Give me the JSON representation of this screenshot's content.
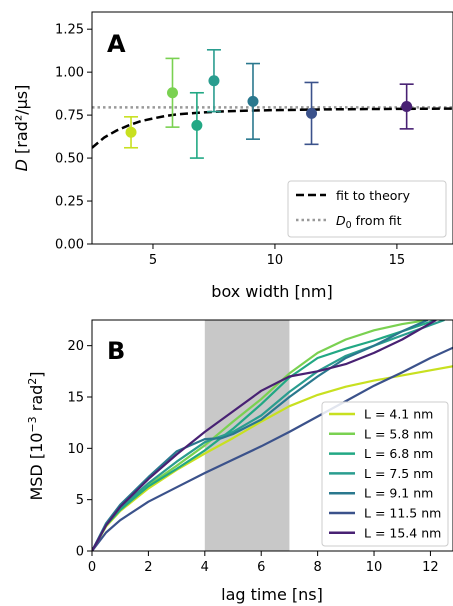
{
  "chart_data": [
    {
      "panel_label": "A",
      "type": "scatter",
      "xlabel": "box width [nm]",
      "ylabel_prefix": "D",
      "ylabel_rest": " [rad²/µs]",
      "xlim": [
        2.5,
        17.3
      ],
      "ylim": [
        0.0,
        1.35
      ],
      "xticks": [
        5,
        10,
        15
      ],
      "yticks": [
        0.0,
        0.25,
        0.5,
        0.75,
        1.0,
        1.25
      ],
      "xtick_labels": [
        "5",
        "10",
        "15"
      ],
      "ytick_labels": [
        "0.00",
        "0.25",
        "0.50",
        "0.75",
        "1.00",
        "1.25"
      ],
      "points": [
        {
          "x": 4.1,
          "y": 0.65,
          "err": 0.09,
          "color": "#c8e020"
        },
        {
          "x": 5.8,
          "y": 0.88,
          "err": 0.2,
          "color": "#7ad151"
        },
        {
          "x": 6.8,
          "y": 0.69,
          "err": 0.19,
          "color": "#22a884"
        },
        {
          "x": 7.5,
          "y": 0.95,
          "err": 0.18,
          "color": "#2a9d8f"
        },
        {
          "x": 9.1,
          "y": 0.83,
          "err": 0.22,
          "color": "#2a788e"
        },
        {
          "x": 11.5,
          "y": 0.76,
          "err": 0.18,
          "color": "#3b528b"
        },
        {
          "x": 15.4,
          "y": 0.8,
          "err": 0.13,
          "color": "#482173"
        }
      ],
      "fit_curve": {
        "x": [
          2.5,
          3.0,
          3.5,
          4.0,
          4.5,
          5.0,
          5.5,
          6.0,
          7.0,
          8.0,
          9.0,
          10.0,
          11.0,
          12.0,
          13.5,
          15.0,
          17.3
        ],
        "y": [
          0.56,
          0.62,
          0.66,
          0.69,
          0.715,
          0.73,
          0.745,
          0.755,
          0.765,
          0.772,
          0.776,
          0.779,
          0.781,
          0.783,
          0.785,
          0.786,
          0.788
        ]
      },
      "D0": 0.795,
      "legend": {
        "position": "lower-right",
        "entries": [
          {
            "label": "fit to theory",
            "style": "dashed",
            "color": "#000000"
          },
          {
            "label_prefix": "D",
            "label_sub": "0",
            "label_rest": " from fit",
            "style": "dotted",
            "color": "#999999"
          }
        ]
      }
    },
    {
      "panel_label": "B",
      "type": "line",
      "xlabel": "lag time [ns]",
      "ylabel_parts": [
        "MSD [10",
        "−3",
        " rad",
        "2",
        "]"
      ],
      "xlim": [
        0,
        12.8
      ],
      "ylim": [
        0,
        22.5
      ],
      "xticks": [
        0,
        2,
        4,
        6,
        8,
        10,
        12
      ],
      "yticks": [
        0,
        5,
        10,
        15,
        20
      ],
      "xtick_labels": [
        "0",
        "2",
        "4",
        "6",
        "8",
        "10",
        "12"
      ],
      "ytick_labels": [
        "0",
        "5",
        "10",
        "15",
        "20"
      ],
      "shaded_region": [
        4.0,
        7.0
      ],
      "shade_color": "#c8c8c8",
      "series": [
        {
          "name": "L = 4.1 nm",
          "color": "#c8e020",
          "x": [
            0,
            0.5,
            1,
            2,
            3,
            4,
            5,
            6,
            7,
            8,
            9,
            10,
            11,
            12,
            12.8
          ],
          "y": [
            0,
            2.4,
            3.9,
            6.1,
            7.9,
            9.5,
            11.0,
            12.6,
            14.1,
            15.2,
            16.0,
            16.6,
            17.1,
            17.6,
            18.0
          ]
        },
        {
          "name": "L = 5.8 nm",
          "color": "#7ad151",
          "x": [
            0,
            0.5,
            1,
            2,
            3,
            4,
            5,
            6,
            7,
            8,
            9,
            10,
            11,
            11.9
          ],
          "y": [
            0,
            2.5,
            4.0,
            6.4,
            8.3,
            10.3,
            12.6,
            14.8,
            17.3,
            19.3,
            20.6,
            21.5,
            22.1,
            22.5
          ]
        },
        {
          "name": "L = 6.8 nm",
          "color": "#22a884",
          "x": [
            0,
            0.5,
            1,
            2,
            3,
            4,
            5,
            6,
            7,
            8,
            9,
            10,
            11,
            12.2
          ],
          "y": [
            0,
            2.5,
            4.0,
            6.3,
            8.0,
            9.8,
            11.9,
            14.3,
            16.9,
            18.8,
            19.7,
            20.5,
            21.4,
            22.5
          ]
        },
        {
          "name": "L = 7.5 nm",
          "color": "#2a9d8f",
          "x": [
            0,
            0.5,
            1,
            2,
            3,
            4,
            5,
            6,
            7,
            8,
            9,
            10,
            11,
            12.5
          ],
          "y": [
            0,
            2.6,
            4.2,
            6.6,
            8.7,
            10.6,
            11.6,
            13.2,
            15.5,
            17.5,
            19.0,
            20.0,
            21.0,
            22.5
          ]
        },
        {
          "name": "L = 9.1 nm",
          "color": "#2a788e",
          "x": [
            0,
            0.5,
            1,
            2,
            3,
            4,
            4.6,
            5,
            6,
            7,
            8,
            9,
            10,
            11,
            11.9
          ],
          "y": [
            0,
            2.7,
            4.5,
            7.2,
            9.7,
            10.9,
            11.0,
            11.4,
            12.8,
            15.0,
            17.0,
            18.8,
            20.0,
            21.4,
            22.5
          ]
        },
        {
          "name": "L = 11.5 nm",
          "color": "#3b528b",
          "x": [
            0,
            0.5,
            1,
            2,
            3,
            4,
            5,
            6,
            7,
            8,
            9,
            10,
            11,
            12,
            12.8
          ],
          "y": [
            0,
            1.8,
            3.0,
            4.8,
            6.2,
            7.6,
            8.9,
            10.2,
            11.6,
            13.1,
            14.6,
            16.1,
            17.4,
            18.8,
            19.8
          ]
        },
        {
          "name": "L = 15.4 nm",
          "color": "#482173",
          "x": [
            0,
            0.5,
            1,
            2,
            3,
            4,
            5,
            6,
            7,
            8,
            9,
            10,
            11,
            12.2
          ],
          "y": [
            0,
            2.5,
            4.3,
            7.0,
            9.4,
            11.6,
            13.6,
            15.6,
            17.0,
            17.5,
            18.2,
            19.3,
            20.6,
            22.5
          ]
        }
      ],
      "legend": {
        "position": "lower-right"
      }
    }
  ]
}
